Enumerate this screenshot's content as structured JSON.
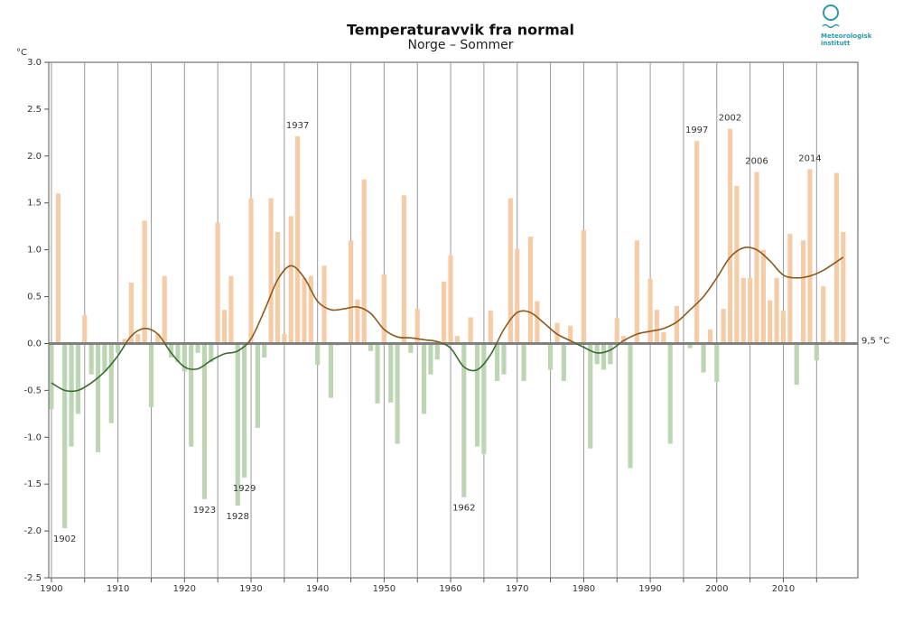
{
  "chart_data": {
    "type": "bar",
    "title": "Temperaturavvik fra normal",
    "subtitle": "Norge – Sommer",
    "y_unit": "°C",
    "reference_label": "9,5 °C",
    "logo": [
      "Meteorologisk",
      "institutt"
    ],
    "pos_color": "#f5cca6",
    "neg_color": "#bcd6b4",
    "pos_line_color": "#8b5a1f",
    "neg_line_color": "#3a6a30",
    "grid": true,
    "x": [
      1900,
      1901,
      1902,
      1903,
      1904,
      1905,
      1906,
      1907,
      1908,
      1909,
      1910,
      1911,
      1912,
      1913,
      1914,
      1915,
      1916,
      1917,
      1918,
      1919,
      1920,
      1921,
      1922,
      1923,
      1924,
      1925,
      1926,
      1927,
      1928,
      1929,
      1930,
      1931,
      1932,
      1933,
      1934,
      1935,
      1936,
      1937,
      1938,
      1939,
      1940,
      1941,
      1942,
      1943,
      1944,
      1945,
      1946,
      1947,
      1948,
      1949,
      1950,
      1951,
      1952,
      1953,
      1954,
      1955,
      1956,
      1957,
      1958,
      1959,
      1960,
      1961,
      1962,
      1963,
      1964,
      1965,
      1966,
      1967,
      1968,
      1969,
      1970,
      1971,
      1972,
      1973,
      1974,
      1975,
      1976,
      1977,
      1978,
      1979,
      1980,
      1981,
      1982,
      1983,
      1984,
      1985,
      1986,
      1987,
      1988,
      1989,
      1990,
      1991,
      1992,
      1993,
      1994,
      1995,
      1996,
      1997,
      1998,
      1999,
      2000,
      2001,
      2002,
      2003,
      2004,
      2005,
      2006,
      2007,
      2008,
      2009,
      2010,
      2011,
      2012,
      2013,
      2014,
      2015,
      2016,
      2017,
      2018,
      2019
    ],
    "values": [
      -0.7,
      1.6,
      -1.97,
      -1.1,
      -0.75,
      0.3,
      -0.33,
      -1.16,
      -0.3,
      -0.85,
      -0.1,
      0.05,
      0.65,
      0.1,
      1.31,
      -0.68,
      0.1,
      0.72,
      -0.15,
      -0.2,
      -0.3,
      -1.1,
      -0.1,
      -1.66,
      -0.2,
      1.29,
      0.36,
      0.72,
      -1.73,
      -1.43,
      1.55,
      -0.9,
      -0.15,
      1.55,
      1.19,
      0.1,
      1.36,
      2.21,
      0.7,
      0.72,
      -0.23,
      0.83,
      -0.58,
      -0.02,
      0.0,
      1.1,
      0.47,
      1.75,
      -0.08,
      -0.64,
      0.74,
      -0.63,
      -1.07,
      1.58,
      -0.1,
      0.37,
      -0.75,
      -0.33,
      -0.17,
      0.66,
      0.94,
      0.08,
      -1.64,
      0.28,
      -1.1,
      -1.18,
      0.35,
      -0.4,
      -0.33,
      1.55,
      1.01,
      -0.4,
      1.14,
      0.45,
      0.0,
      -0.28,
      0.22,
      -0.4,
      0.19,
      0.0,
      1.21,
      -1.12,
      -0.22,
      -0.28,
      -0.22,
      0.27,
      0.08,
      -1.33,
      1.1,
      0.0,
      0.69,
      0.36,
      0.12,
      -1.07,
      0.4,
      0.0,
      -0.05,
      2.16,
      -0.31,
      0.15,
      -0.41,
      0.37,
      2.29,
      1.68,
      0.7,
      0.7,
      1.83,
      1.0,
      0.46,
      0.7,
      0.35,
      1.17,
      -0.44,
      1.1,
      1.86,
      -0.18,
      0.61,
      0.03,
      1.82,
      1.19
    ],
    "smooth": {
      "x": [
        1900,
        1902,
        1904,
        1906,
        1908,
        1910,
        1912,
        1914,
        1916,
        1918,
        1920,
        1922,
        1924,
        1926,
        1928,
        1930,
        1932,
        1934,
        1936,
        1938,
        1940,
        1942,
        1944,
        1946,
        1948,
        1950,
        1952,
        1954,
        1956,
        1958,
        1960,
        1962,
        1964,
        1966,
        1968,
        1970,
        1972,
        1974,
        1976,
        1978,
        1980,
        1982,
        1984,
        1986,
        1988,
        1990,
        1992,
        1994,
        1996,
        1998,
        2000,
        2002,
        2004,
        2006,
        2008,
        2010,
        2012,
        2014,
        2016,
        2019
      ],
      "values": [
        -0.42,
        -0.5,
        -0.5,
        -0.42,
        -0.3,
        -0.13,
        0.08,
        0.16,
        0.1,
        -0.1,
        -0.25,
        -0.27,
        -0.18,
        -0.11,
        -0.08,
        0.05,
        0.35,
        0.68,
        0.83,
        0.7,
        0.45,
        0.36,
        0.37,
        0.39,
        0.32,
        0.15,
        0.07,
        0.06,
        0.04,
        0.02,
        -0.05,
        -0.25,
        -0.28,
        -0.12,
        0.15,
        0.33,
        0.33,
        0.22,
        0.1,
        0.03,
        -0.04,
        -0.1,
        -0.07,
        0.03,
        0.1,
        0.13,
        0.16,
        0.23,
        0.36,
        0.5,
        0.7,
        0.92,
        1.02,
        1.0,
        0.88,
        0.73,
        0.7,
        0.72,
        0.78,
        0.92
      ]
    },
    "annotations": [
      "1902",
      "1923",
      "1928",
      "1929",
      "1937",
      "1962",
      "1997",
      "2002",
      "2006",
      "2014"
    ],
    "xlim": [
      1899.6,
      2021.2
    ],
    "xticks": [
      1900,
      1910,
      1920,
      1930,
      1940,
      1950,
      1960,
      1970,
      1980,
      1990,
      2000,
      2010
    ],
    "xgrid": [
      1900,
      1905,
      1910,
      1915,
      1920,
      1925,
      1930,
      1935,
      1940,
      1945,
      1950,
      1955,
      1960,
      1965,
      1970,
      1975,
      1980,
      1985,
      1990,
      1995,
      2000,
      2005,
      2010,
      2015
    ],
    "ylim": [
      -2.5,
      3.0
    ],
    "yticks": [
      {
        "value": 3.0,
        "label": "3.0"
      },
      2.5,
      {
        "value": 2.0,
        "label": "2.0"
      },
      1.5,
      {
        "value": 1.0,
        "label": "1.0"
      },
      0.5,
      {
        "value": 0.0,
        "label": "0.0"
      },
      -0.5,
      {
        "value": -1.0,
        "label": "-1.0"
      },
      -1.5,
      {
        "value": -2.0,
        "label": "-2.0"
      },
      -2.5
    ]
  }
}
